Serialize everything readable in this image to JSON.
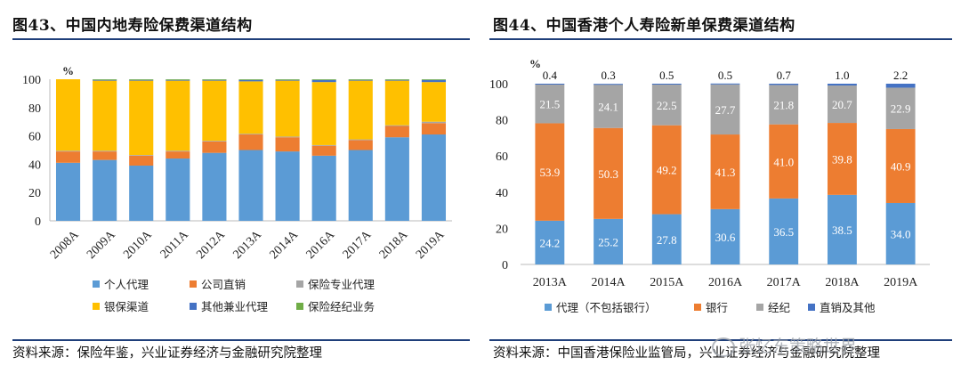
{
  "charts": {
    "left": {
      "figure_title": "图43、中国内地寿险保费渠道结构",
      "source": "资料来源：保险年鉴，兴业证券经济与金融研究院整理"
    },
    "right": {
      "figure_title": "图44、中国香港个人寿险新单保费渠道结构",
      "source": "资料来源：中国香港保险业监管局，兴业证券经济与金融研究院整理"
    }
  },
  "watermark": "张忆东策略世界",
  "colors": {
    "blue": "#5b9bd5",
    "orange": "#ed7d31",
    "gray": "#a5a5a5",
    "yellow": "#ffc000",
    "darkblue": "#4472c4",
    "green": "#70ad47"
  },
  "chart_data": [
    {
      "type": "bar",
      "stacked": true,
      "title": "图43、中国内地寿险保费渠道结构",
      "ylabel": "%",
      "ylim": [
        0,
        100
      ],
      "yticks": [
        0,
        20,
        40,
        60,
        80,
        100
      ],
      "grid": false,
      "legend_position": "bottom",
      "categories": [
        "2008A",
        "2009A",
        "2010A",
        "2011A",
        "2012A",
        "2013A",
        "2014A",
        "2016A",
        "2017A",
        "2018A",
        "2019A"
      ],
      "series": [
        {
          "name": "个人代理",
          "color": "#5b9bd5",
          "values": [
            41,
            43,
            39,
            44,
            48,
            50,
            49,
            46,
            50,
            59,
            61
          ]
        },
        {
          "name": "公司直销",
          "color": "#ed7d31",
          "values": [
            8,
            6,
            7,
            5,
            8,
            11,
            10,
            7,
            7,
            8,
            8
          ]
        },
        {
          "name": "保险专业代理",
          "color": "#a5a5a5",
          "values": [
            0.5,
            0.5,
            0.5,
            0.5,
            0.5,
            0.5,
            0.5,
            0.5,
            0.5,
            0.5,
            1
          ]
        },
        {
          "name": "银保渠道",
          "color": "#ffc000",
          "values": [
            50.5,
            49.5,
            52.5,
            49.5,
            42.5,
            37,
            39.5,
            44.5,
            41.5,
            31.5,
            28
          ]
        },
        {
          "name": "其他兼业代理",
          "color": "#4472c4",
          "values": [
            0,
            0.5,
            0.5,
            0.5,
            0.5,
            1,
            0.5,
            1.5,
            0.5,
            0.5,
            1.5
          ]
        },
        {
          "name": "保险经纪业务",
          "color": "#70ad47",
          "values": [
            0,
            0.5,
            0.5,
            0.5,
            0.5,
            0.5,
            0.5,
            0.5,
            0.5,
            0.5,
            0.5
          ]
        }
      ]
    },
    {
      "type": "bar",
      "stacked": true,
      "title": "图44、中国香港个人寿险新单保费渠道结构",
      "ylabel": "%",
      "ylim": [
        0,
        100
      ],
      "yticks": [
        0,
        20,
        40,
        60,
        80,
        100
      ],
      "grid": false,
      "legend_position": "bottom",
      "categories": [
        "2013A",
        "2014A",
        "2015A",
        "2016A",
        "2017A",
        "2018A",
        "2019A"
      ],
      "series": [
        {
          "name": "代理（不包括银行）",
          "color": "#5b9bd5",
          "label_color": "#ffffff",
          "values": [
            24.2,
            25.2,
            27.8,
            30.6,
            36.5,
            38.5,
            34.0
          ]
        },
        {
          "name": "银行",
          "color": "#ed7d31",
          "label_color": "#ffffff",
          "values": [
            53.9,
            50.3,
            49.2,
            41.3,
            41.0,
            39.8,
            40.9
          ]
        },
        {
          "name": "经纪",
          "color": "#a5a5a5",
          "label_color": "#ffffff",
          "values": [
            21.5,
            24.1,
            22.5,
            27.7,
            21.8,
            20.7,
            22.9
          ]
        },
        {
          "name": "直销及其他",
          "color": "#4472c4",
          "label_color": "#111111",
          "values": [
            0.4,
            0.3,
            0.5,
            0.5,
            0.7,
            1.0,
            2.2
          ]
        }
      ]
    }
  ]
}
